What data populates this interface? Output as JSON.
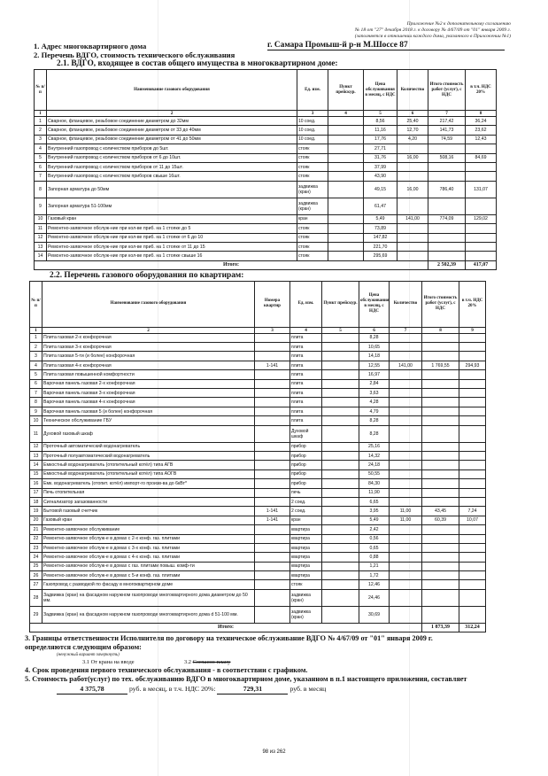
{
  "annex": {
    "line1": "Приложение №2 к дополнительному соглашению",
    "line2": "№ 18 от \"27\" декабря 2018 г. к договору № 4/67/09 от \"01\" января 2009 г.",
    "line3": "(заполняется в отношении каждого дома, указанного в Приложении №1)"
  },
  "section1": {
    "label": "1. Адрес многоквартирного дома",
    "address": "г. Самара Промыш-й р-н М.Шоссе 87"
  },
  "section2": {
    "label": "2. Перечень ВДГО, стоимость технического обслуживания"
  },
  "table1": {
    "title": "2.1. ВДГО, входящее в состав общего имущества в многоквартирном доме:",
    "headers": [
      "№ п/п",
      "Наименование газового оборудования",
      "Ед. изм.",
      "Пункт прейскур.",
      "Цена обслуживания в месяц, с НДС",
      "Количество",
      "Итого стоимость работ (услуг), с НДС",
      "в т.ч. НДС 20%"
    ],
    "col_numbers": [
      "1",
      "2",
      "3",
      "4",
      "5",
      "6",
      "7",
      "8"
    ],
    "rows": [
      [
        "1",
        "Сварное, фланцевое, резьбовое соединение  диаметром до 32мм",
        "10 соед.",
        "",
        "8,56",
        "25,40",
        "217,42",
        "36,24"
      ],
      [
        "2",
        "Сварное, фланцевое, резьбовое соединение  диаметром от 33 до 40мм",
        "10 соед.",
        "",
        "11,16",
        "12,70",
        "141,73",
        "23,62"
      ],
      [
        "3",
        "Сварное, фланцевое, резьбовое соединение  диаметром от 41 до 50мм",
        "10 соед.",
        "",
        "17,76",
        "4,20",
        "74,59",
        "12,43"
      ],
      [
        "4",
        "Внутренний газопровод с количеством  приборов до 5шт.",
        "стояк",
        "",
        "27,71",
        "",
        "",
        ""
      ],
      [
        "5",
        "Внутренний газопровод с количеством приборов от 6 до 10шт.",
        "стояк",
        "",
        "31,76",
        "16,00",
        "508,16",
        "84,69"
      ],
      [
        "6",
        "Внутренний газопровод с количеством  приборов от 11 до 15шт.",
        "стояк",
        "",
        "37,99",
        "",
        "",
        ""
      ],
      [
        "7",
        "Внутренний газопровод с количеством приборов свыше 16шт.",
        "стояк",
        "",
        "43,90",
        "",
        "",
        ""
      ],
      [
        "8",
        "Запорная арматура до 50мм",
        "задвижка (кран)",
        "",
        "49,15",
        "16,00",
        "786,40",
        "131,07"
      ],
      [
        "9",
        "Запорная арматура 51-100мм",
        "задвижка (кран)",
        "",
        "61,47",
        "",
        "",
        ""
      ],
      [
        "10",
        "Газовый кран",
        "кран",
        "",
        "5,49",
        "141,00",
        "774,09",
        "129,02"
      ],
      [
        "11",
        "Ремонтно-заявочное обслуж-ние при кол-ве приб. на 1 стояке до 5",
        "стояк",
        "",
        "73,89",
        "",
        "",
        ""
      ],
      [
        "12",
        "Ремонтно-заявочное обслуж-ние при кол-ве приб. на 1 стояке от 6 до 10",
        "стояк",
        "",
        "147,82",
        "",
        "",
        ""
      ],
      [
        "13",
        "Ремонтно-заявочное обслуж-ние при кол-ве приб. на 1 стояке от 11 до 15",
        "стояк",
        "",
        "221,70",
        "",
        "",
        ""
      ],
      [
        "14",
        "Ремонтно-заявочное обслуж-ние при кол-ве приб. на 1 стояке свыше 16",
        "стояк",
        "",
        "295,69",
        "",
        "",
        ""
      ]
    ],
    "total_label": "Итого:",
    "total": "2 502,39",
    "total_vat": "417,07"
  },
  "table2": {
    "title": "2.2. Перечень газового оборудования  по квартирам:",
    "headers": [
      "№ п/п",
      "Наименование газового оборудования",
      "Номера квартир",
      "Ед. изм.",
      "Пункт прейскур.",
      "Цена обслуживания в месяц, с НДС",
      "Количество",
      "Итого стоимость работ (услуг), с НДС",
      "в т.ч. НДС 20%"
    ],
    "col_numbers": [
      "1",
      "2",
      "3",
      "4",
      "5",
      "6",
      "7",
      "8",
      "9"
    ],
    "rows": [
      [
        "1",
        "Плита газовая 2-х конфорочная",
        "",
        "плита",
        "",
        "8,28",
        "",
        "",
        ""
      ],
      [
        "2",
        "Плита газовая 3-х конфорочная",
        "",
        "плита",
        "",
        "10,65",
        "",
        "",
        ""
      ],
      [
        "3",
        "Плита газовая 5-ти (и более) конфорочная",
        "",
        "плита",
        "",
        "14,18",
        "",
        "",
        ""
      ],
      [
        "4",
        "Плита газовая 4-х конфорочная",
        "1-141",
        "плита",
        "",
        "12,55",
        "141,00",
        "1 769,55",
        "294,93"
      ],
      [
        "5",
        "Плита газовая повышенной комфортности",
        "",
        "плита",
        "",
        "16,97",
        "",
        "",
        ""
      ],
      [
        "6",
        "Варочная панель газовая 2-х конфорочная",
        "",
        "плита",
        "",
        "2,84",
        "",
        "",
        ""
      ],
      [
        "7",
        "Варочная панель газовая 3-х конфорочная",
        "",
        "плита",
        "",
        "3,63",
        "",
        "",
        ""
      ],
      [
        "8",
        "Варочная панель газовая 4-х конфорочная",
        "",
        "плита",
        "",
        "4,28",
        "",
        "",
        ""
      ],
      [
        "9",
        "Варочная панель газовая 5 (и более) конфорочная",
        "",
        "плита",
        "",
        "4,79",
        "",
        "",
        ""
      ],
      [
        "10",
        "Техническое обслуживание ГБУ",
        "",
        "плита",
        "",
        "8,28",
        "",
        "",
        ""
      ],
      [
        "11",
        "Духовой газовый шкаф",
        "",
        "Духовой шкаф",
        "",
        "8,28",
        "",
        "",
        ""
      ],
      [
        "12",
        "Проточный автоматический водонагреватель",
        "",
        "прибор",
        "",
        "25,16",
        "",
        "",
        ""
      ],
      [
        "13",
        "Проточный полуавтоматический водонагреватель",
        "",
        "прибор",
        "",
        "14,32",
        "",
        "",
        ""
      ],
      [
        "14",
        "Емкостный водонагреватель (отопительный котёл) типа АГВ",
        "",
        "прибор",
        "",
        "24,18",
        "",
        "",
        ""
      ],
      [
        "15",
        "Емкостный водонагреватель (отопительный котёл) типа АОГВ",
        "",
        "прибор",
        "",
        "50,55",
        "",
        "",
        ""
      ],
      [
        "16",
        "Емк. водонагреватель (отопит. котёл) импорт-го произв-ва до 6кВт*",
        "",
        "прибор",
        "",
        "84,30",
        "",
        "",
        ""
      ],
      [
        "17",
        "Печь отопительная",
        "",
        "печь",
        "",
        "11,90",
        "",
        "",
        ""
      ],
      [
        "18",
        "Сигнализатор загазованности",
        "",
        "2 соед.",
        "",
        "6,65",
        "",
        "",
        ""
      ],
      [
        "19",
        "Бытовой газовый счетчик",
        "1-141",
        "2 соед.",
        "",
        "3,95",
        "11,00",
        "43,45",
        "7,24"
      ],
      [
        "20",
        "Газовый кран",
        "1-141",
        "кран",
        "",
        "5,49",
        "11,00",
        "60,39",
        "10,07"
      ],
      [
        "21",
        "Ремонтно-заявочное обслуживание",
        "",
        "квартира",
        "",
        "2,42",
        "",
        "",
        ""
      ],
      [
        "22",
        "Ремонтно-заявочное обслуж-е в домах с 2-х конф. газ. плитами",
        "",
        "квартира",
        "",
        "0,56",
        "",
        "",
        ""
      ],
      [
        "23",
        "Ремонтно-заявочное обслуж-е в домах с 3-х конф. газ. плитами",
        "",
        "квартира",
        "",
        "0,65",
        "",
        "",
        ""
      ],
      [
        "24",
        "Ремонтно-заявочное обслуж-е в домах с 4-х конф. газ. плитами",
        "",
        "квартира",
        "",
        "0,88",
        "",
        "",
        ""
      ],
      [
        "25",
        "Ремонтно-заявочное обслуж-е в домах с газ. плитами повыш. комф-ти",
        "",
        "квартира",
        "",
        "1,21",
        "",
        "",
        ""
      ],
      [
        "26",
        "Ремонтно-заявочное обслуж-е в домах с 5-и конф. газ. плитами",
        "",
        "квартира",
        "",
        "1,72",
        "",
        "",
        ""
      ],
      [
        "27",
        "Газопровод с разводкой по фасаду в многоквартирном доме",
        "",
        "стояк",
        "",
        "12,46",
        "",
        "",
        ""
      ],
      [
        "28",
        "Задвижка (кран) на фасадном наружном газопроводе многоквартирного дома диаметром до 50 мм.",
        "",
        "задвижка (кран)",
        "",
        "24,46",
        "",
        "",
        ""
      ],
      [
        "29",
        "Задвижка (кран) на фасадном наружном газопроводе многоквартирного дома d 51-100 мм.",
        "",
        "задвижка (кран)",
        "",
        "30,69",
        "",
        "",
        ""
      ]
    ],
    "total_label": "Итого:",
    "total": "1 873,39",
    "total_vat": "312,24"
  },
  "section3": {
    "line1": "3. Границы ответственности Исполнителя по договору на техническое обслуживание ВДГО № 4/67/09 от \"01\" января 2009 г.",
    "line2": "определяются следующим образом:",
    "hint": "(ненужный вариант зачеркнуть)",
    "option1": "3.1  От крана на вводе",
    "option2_num": "3.2",
    "option2_text": "Согласно плану"
  },
  "section4": {
    "text": "4. Срок проведения первого технического обслуживания - в соответствии с графиком."
  },
  "section5": {
    "text": "5. Стоимость работ(услуг) по тех. обслуживанию ВДГО в многоквартирном доме, указанном в п.1 настоящего приложения, составляет",
    "amount": "4 375,78",
    "amount_unit": "руб. в месяц, в т.ч. НДС 20%:",
    "vat": "729,31",
    "vat_unit": "руб. в месяц"
  },
  "footer": {
    "page": "98 из 262"
  }
}
